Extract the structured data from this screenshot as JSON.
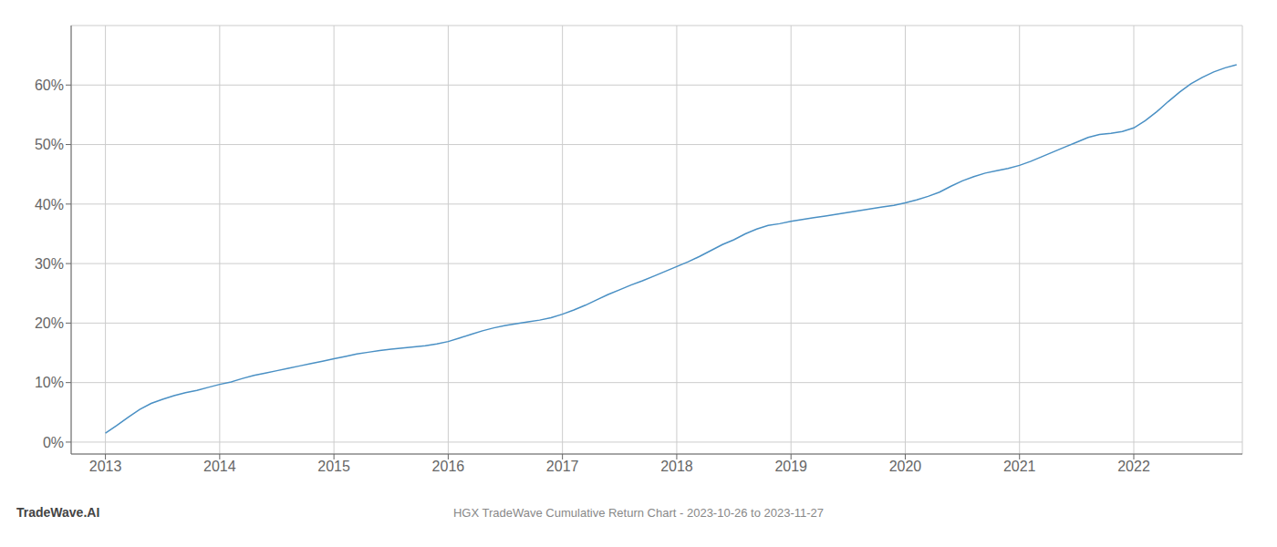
{
  "chart_data": {
    "type": "line",
    "title": "HGX TradeWave Cumulative Return Chart - 2023-10-26 to 2023-11-27",
    "annotations": [
      "TradeWave.AI"
    ],
    "color": "#4a90c4",
    "grid": true,
    "x": [
      2013.0,
      2013.1,
      2013.2,
      2013.3,
      2013.4,
      2013.5,
      2013.6,
      2013.7,
      2013.8,
      2013.9,
      2014.0,
      2014.1,
      2014.2,
      2014.3,
      2014.4,
      2014.5,
      2014.6,
      2014.7,
      2014.8,
      2014.9,
      2015.0,
      2015.1,
      2015.2,
      2015.3,
      2015.4,
      2015.5,
      2015.6,
      2015.7,
      2015.8,
      2015.9,
      2016.0,
      2016.1,
      2016.2,
      2016.3,
      2016.4,
      2016.5,
      2016.6,
      2016.7,
      2016.8,
      2016.9,
      2017.0,
      2017.1,
      2017.2,
      2017.3,
      2017.4,
      2017.5,
      2017.6,
      2017.7,
      2017.8,
      2017.9,
      2018.0,
      2018.1,
      2018.2,
      2018.3,
      2018.4,
      2018.5,
      2018.6,
      2018.7,
      2018.8,
      2018.9,
      2019.0,
      2019.1,
      2019.2,
      2019.3,
      2019.4,
      2019.5,
      2019.6,
      2019.7,
      2019.8,
      2019.9,
      2020.0,
      2020.1,
      2020.2,
      2020.3,
      2020.4,
      2020.5,
      2020.6,
      2020.7,
      2020.8,
      2020.9,
      2021.0,
      2021.1,
      2021.2,
      2021.3,
      2021.4,
      2021.5,
      2021.6,
      2021.7,
      2021.8,
      2021.9,
      2022.0,
      2022.1,
      2022.2,
      2022.3,
      2022.4,
      2022.5,
      2022.6,
      2022.7,
      2022.8,
      2022.9
    ],
    "values": [
      1.5,
      2.8,
      4.2,
      5.5,
      6.5,
      7.2,
      7.8,
      8.3,
      8.7,
      9.2,
      9.7,
      10.1,
      10.7,
      11.2,
      11.6,
      12.0,
      12.4,
      12.8,
      13.2,
      13.6,
      14.0,
      14.4,
      14.8,
      15.1,
      15.4,
      15.6,
      15.8,
      16.0,
      16.2,
      16.5,
      16.9,
      17.5,
      18.1,
      18.7,
      19.2,
      19.6,
      19.9,
      20.2,
      20.5,
      20.9,
      21.5,
      22.2,
      23.0,
      23.9,
      24.8,
      25.6,
      26.4,
      27.1,
      27.9,
      28.7,
      29.5,
      30.3,
      31.2,
      32.2,
      33.2,
      34.0,
      35.0,
      35.8,
      36.4,
      36.7,
      37.1,
      37.4,
      37.7,
      38.0,
      38.3,
      38.6,
      38.9,
      39.2,
      39.5,
      39.8,
      40.2,
      40.7,
      41.3,
      42.0,
      43.0,
      43.9,
      44.6,
      45.2,
      45.6,
      46.0,
      46.5,
      47.2,
      48.0,
      48.8,
      49.6,
      50.4,
      51.2,
      51.7,
      51.9,
      52.2,
      52.8,
      54.0,
      55.5,
      57.2,
      58.8,
      60.2,
      61.3,
      62.2,
      62.9,
      63.4
    ],
    "xlim": [
      2012.7,
      2022.95
    ],
    "xticks": [
      2013,
      2014,
      2015,
      2016,
      2017,
      2018,
      2019,
      2020,
      2021,
      2022
    ],
    "ylim": [
      -2,
      70
    ],
    "yticks": [
      {
        "value": 0,
        "label": "0%"
      },
      {
        "value": 10,
        "label": "10%"
      },
      {
        "value": 20,
        "label": "20%"
      },
      {
        "value": 30,
        "label": "30%"
      },
      {
        "value": 40,
        "label": "40%"
      },
      {
        "value": 50,
        "label": "50%"
      },
      {
        "value": 60,
        "label": "60%"
      }
    ]
  }
}
